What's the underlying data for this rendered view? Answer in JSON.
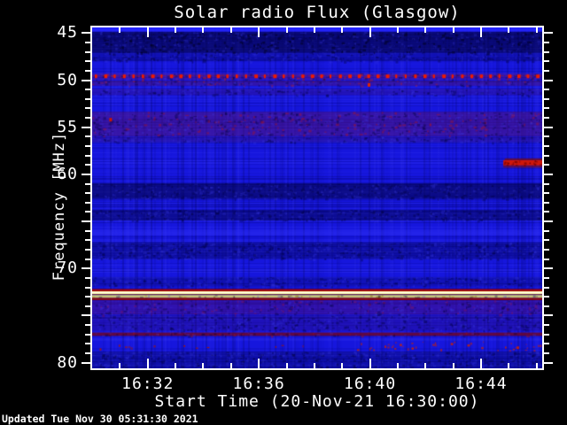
{
  "title": "Solar radio Flux (Glasgow)",
  "axes": {
    "ylabel": "Frequency [MHz]",
    "xlabel": "Start Time (20-Nov-21 16:30:00)",
    "x_tick_labels": [
      "16:32",
      "16:36",
      "16:40",
      "16:44"
    ],
    "y_tick_labels": [
      "45",
      "50",
      "55",
      "60",
      "70",
      "80"
    ]
  },
  "footer": {
    "updated": "Updated Tue Nov 30 05:31:30 2021"
  },
  "colors": {
    "background": "#000000",
    "axis": "#ffffff",
    "text": "#ffffff",
    "plot_base": "#1616dd",
    "emission_line_yellow": "#ffffa8",
    "interference_red": "#ee1a00"
  },
  "chart_data": {
    "type": "heatmap",
    "subtype": "radio-spectrogram",
    "title": "Solar radio Flux (Glasgow)",
    "xlabel": "Start Time (20-Nov-21 16:30:00)",
    "ylabel": "Frequency [MHz]",
    "x_range_min": [
      0,
      16.2
    ],
    "x_start_time": "16:30:00",
    "x_major_ticks_min": [
      2,
      6,
      10,
      14
    ],
    "x_minor_step_min": 1,
    "y_range_mhz": [
      44.4,
      80.6
    ],
    "y_axis_inverted": true,
    "y_labeled_ticks_mhz": [
      45,
      50,
      55,
      60,
      70,
      80
    ],
    "y_major_step": 5,
    "y_minor_step": 1,
    "base_color": "#1616dd",
    "bands": [
      {
        "style": "solid",
        "f": [
          44.4,
          44.85
        ],
        "color": "#2626ff",
        "alpha": 0.9
      },
      {
        "style": "mottle",
        "f": [
          44.85,
          47.1
        ],
        "color": "#000028",
        "alpha": 0.55,
        "speckle": "rgba(0,0,25,0.5)",
        "speckle_ratio": 0.3
      },
      {
        "style": "mottle",
        "f": [
          47.1,
          48.0
        ],
        "color": "#000040",
        "alpha": 0.25
      },
      {
        "style": "mottle",
        "f": [
          49.25,
          49.95
        ],
        "color": "#8a1030",
        "alpha": 0.2,
        "speckle": "rgba(200,30,20,0.45)",
        "speckle_ratio": 0.25
      },
      {
        "style": "dots",
        "f": [
          49.4,
          49.78
        ],
        "color": "#ee1a00",
        "spacing_px": 10.6
      },
      {
        "style": "mottle",
        "f": [
          50.05,
          50.6
        ],
        "color": "#70103a",
        "alpha": 0.3,
        "speckle": "rgba(170,30,40,0.4)",
        "speckle_ratio": 0.2
      },
      {
        "style": "mottle",
        "f": [
          50.9,
          51.6
        ],
        "color": "#500d48",
        "alpha": 0.22
      },
      {
        "style": "mottle",
        "f": [
          53.35,
          55.95
        ],
        "color": "#5c1168",
        "alpha": 0.45,
        "speckle": "rgba(150,20,60,0.5)",
        "speckle_ratio": 0.18
      },
      {
        "style": "mottle",
        "f": [
          56.0,
          56.6
        ],
        "color": "#46105a",
        "alpha": 0.28
      },
      {
        "style": "solid",
        "f": [
          58.3,
          58.5
        ],
        "t": [
          14.85,
          16.2
        ],
        "color": "#7a0a10",
        "alpha": 0.7
      },
      {
        "style": "solid",
        "f": [
          58.5,
          59.05
        ],
        "t": [
          14.8,
          16.2
        ],
        "color": "#d81800",
        "alpha": 0.95
      },
      {
        "style": "specks",
        "f": [
          58.5,
          59.05
        ],
        "t": [
          14.8,
          16.2
        ],
        "color": "#7a0000",
        "count": 25
      },
      {
        "style": "solid",
        "f": [
          59.05,
          59.3
        ],
        "t": [
          14.8,
          16.2
        ],
        "color": "#7a0a10",
        "alpha": 0.6
      },
      {
        "style": "mottle",
        "f": [
          60.95,
          62.6
        ],
        "color": "#000034",
        "alpha": 0.5
      },
      {
        "style": "mottle",
        "f": [
          63.75,
          64.9
        ],
        "color": "#000034",
        "alpha": 0.42
      },
      {
        "style": "solid",
        "f": [
          65.9,
          66.5
        ],
        "color": "#3a3aff",
        "alpha": 0.3
      },
      {
        "style": "mottle",
        "f": [
          67.2,
          69.0
        ],
        "color": "#000034",
        "alpha": 0.32
      },
      {
        "style": "mottle",
        "f": [
          70.9,
          71.9
        ],
        "color": "#000034",
        "alpha": 0.2
      },
      {
        "style": "solid",
        "f": [
          72.18,
          72.42
        ],
        "color": "#a00000",
        "alpha": 0.95
      },
      {
        "style": "solid",
        "f": [
          72.42,
          72.72
        ],
        "color": "#ffffa8",
        "alpha": 1
      },
      {
        "style": "solid",
        "f": [
          72.5,
          72.6
        ],
        "color": "#ffffff",
        "alpha": 0.9
      },
      {
        "style": "solid",
        "f": [
          72.72,
          72.82
        ],
        "color": "#6b1530",
        "alpha": 0.9
      },
      {
        "style": "mottle",
        "f": [
          72.82,
          73.12
        ],
        "color": "#d8d870",
        "alpha": 0.9,
        "speckle": "rgba(140,120,30,0.6)",
        "speckle_ratio": 0.3
      },
      {
        "style": "solid",
        "f": [
          73.12,
          73.35
        ],
        "color": "#8c0400",
        "alpha": 0.95
      },
      {
        "style": "mottle",
        "f": [
          73.4,
          74.9
        ],
        "color": "#4f0e78",
        "alpha": 0.45,
        "speckle": "rgba(140,20,80,0.4)",
        "speckle_ratio": 0.15
      },
      {
        "style": "mottle",
        "f": [
          75.0,
          76.6
        ],
        "color": "#35085c",
        "alpha": 0.28
      },
      {
        "style": "mottle",
        "f": [
          76.8,
          77.15
        ],
        "color": "#70041e",
        "alpha": 0.8,
        "speckle": "rgba(160,20,20,0.5)",
        "speckle_ratio": 0.2
      },
      {
        "style": "specks",
        "f": [
          77.7,
          78.7
        ],
        "t": [
          9.5,
          16.2
        ],
        "color": "#cc2200",
        "count": 45
      },
      {
        "style": "specks",
        "f": [
          77.9,
          78.5
        ],
        "t": [
          0,
          9.5
        ],
        "color": "#aa1800",
        "count": 12
      },
      {
        "style": "mottle",
        "f": [
          78.8,
          80.6
        ],
        "color": "#000038",
        "alpha": 0.3
      }
    ],
    "points": [
      {
        "t": 9.95,
        "f": 50.5,
        "color": "#e02400"
      },
      {
        "t": 0.65,
        "f": 54.2,
        "color": "#cc1400"
      }
    ]
  }
}
